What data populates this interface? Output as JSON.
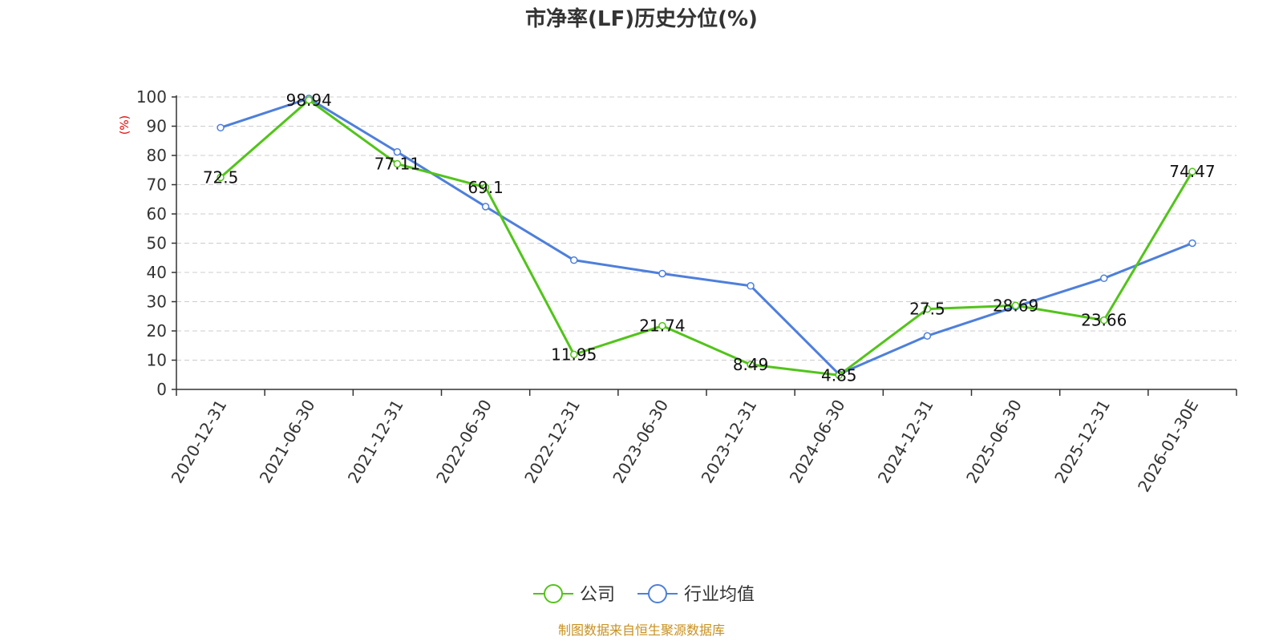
{
  "chart_data": {
    "type": "line",
    "title": "市净率(LF)历史分位(%)",
    "ylabel": "(%)",
    "ylim": [
      0,
      100
    ],
    "yticks": [
      0,
      10,
      20,
      30,
      40,
      50,
      60,
      70,
      80,
      90,
      100
    ],
    "grid": true,
    "legend_position": "bottom",
    "categories": [
      "2020-12-31",
      "2021-06-30",
      "2021-12-31",
      "2022-06-30",
      "2022-12-31",
      "2023-06-30",
      "2023-12-31",
      "2024-06-30",
      "2024-12-31",
      "2025-06-30",
      "2025-12-31",
      "2026-01-30E"
    ],
    "series": [
      {
        "name": "公司",
        "color": "#52c41a",
        "values": [
          72.5,
          98.94,
          77.11,
          69.1,
          11.95,
          21.74,
          8.49,
          4.85,
          27.5,
          28.69,
          23.66,
          74.47
        ],
        "labels": [
          "72.5",
          "98.94",
          "77.11",
          "69.1",
          "11.95",
          "21.74",
          "8.49",
          "4.85",
          "27.5",
          "28.69",
          "23.66",
          "74.47"
        ]
      },
      {
        "name": "行业均值",
        "color": "#4e7fdb",
        "values": [
          89.5,
          99.5,
          81.2,
          62.5,
          44.2,
          39.6,
          35.4,
          5.2,
          18.3,
          28.3,
          38.0,
          50.0
        ]
      }
    ]
  },
  "source": {
    "text": "制图数据来自恒生聚源数据库",
    "color": "#c8901e"
  },
  "colors": {
    "axis": "#333333",
    "grid": "#cccccc",
    "ylabel": "#e00000"
  }
}
